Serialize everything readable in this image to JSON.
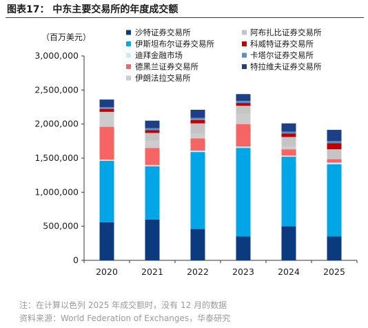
{
  "figure": {
    "title_prefix": "图表17：",
    "title": "中东主要交易所的年度成交额",
    "note": "注：在计算以色列 2025 年成交额时，没有 12 月的数据",
    "source": "资料来源：World Federation of Exchanges，华泰研究"
  },
  "chart_data": {
    "type": "bar",
    "stacked": true,
    "unit_label": "（百万美元）",
    "categories": [
      "2020",
      "2021",
      "2022",
      "2023",
      "2024",
      "2025"
    ],
    "ylim": [
      0,
      3000000
    ],
    "yticks": [
      0,
      500000,
      1000000,
      1500000,
      2000000,
      2500000,
      3000000
    ],
    "ytick_labels": [
      "0",
      "500,000",
      "1,000,000",
      "1,500,000",
      "2,000,000",
      "2,500,000",
      "3,000,000"
    ],
    "grid": false,
    "legend_position": "top",
    "series": [
      {
        "name": "沙特证券交易所",
        "color": "#0b3a7e",
        "values": [
          560000,
          600000,
          460000,
          350000,
          500000,
          350000
        ]
      },
      {
        "name": "伊斯坦布尔证券交易所",
        "color": "#00a6e6",
        "values": [
          900000,
          780000,
          1130000,
          1300000,
          1020000,
          1060000
        ]
      },
      {
        "name": "迪拜金融市场",
        "color": "#cbeaf6",
        "values": [
          20000,
          20000,
          20000,
          20000,
          20000,
          25000
        ]
      },
      {
        "name": "德黑兰证券交易所",
        "color": "#f66464",
        "values": [
          480000,
          250000,
          180000,
          330000,
          90000,
          50000
        ]
      },
      {
        "name": "伊朗法拉交易所",
        "color": "#cccccc",
        "values": [
          200000,
          100000,
          70000,
          150000,
          40000,
          15000
        ]
      },
      {
        "name": "阿布扎比证券交易所",
        "color": "#c4c4c4",
        "values": [
          20000,
          120000,
          150000,
          120000,
          140000,
          130000
        ]
      },
      {
        "name": "科威特证券交易所",
        "color": "#c00000",
        "values": [
          40000,
          40000,
          50000,
          40000,
          50000,
          90000
        ]
      },
      {
        "name": "卡塔尔证券交易所",
        "color": "#5b8fc7",
        "values": [
          30000,
          30000,
          30000,
          30000,
          30000,
          30000
        ]
      },
      {
        "name": "特拉维夫证券交易所",
        "color": "#1c3f86",
        "values": [
          110000,
          110000,
          120000,
          100000,
          120000,
          165000
        ]
      }
    ],
    "legend": {
      "left": [
        "沙特证券交易所",
        "伊斯坦布尔证券交易所",
        "迪拜金融市场",
        "德黑兰证券交易所",
        "伊朗法拉交易所"
      ],
      "right": [
        "阿布扎比证券交易所",
        "科威特证券交易所",
        "卡塔尔证券交易所",
        "特拉维夫证券交易所"
      ]
    }
  }
}
